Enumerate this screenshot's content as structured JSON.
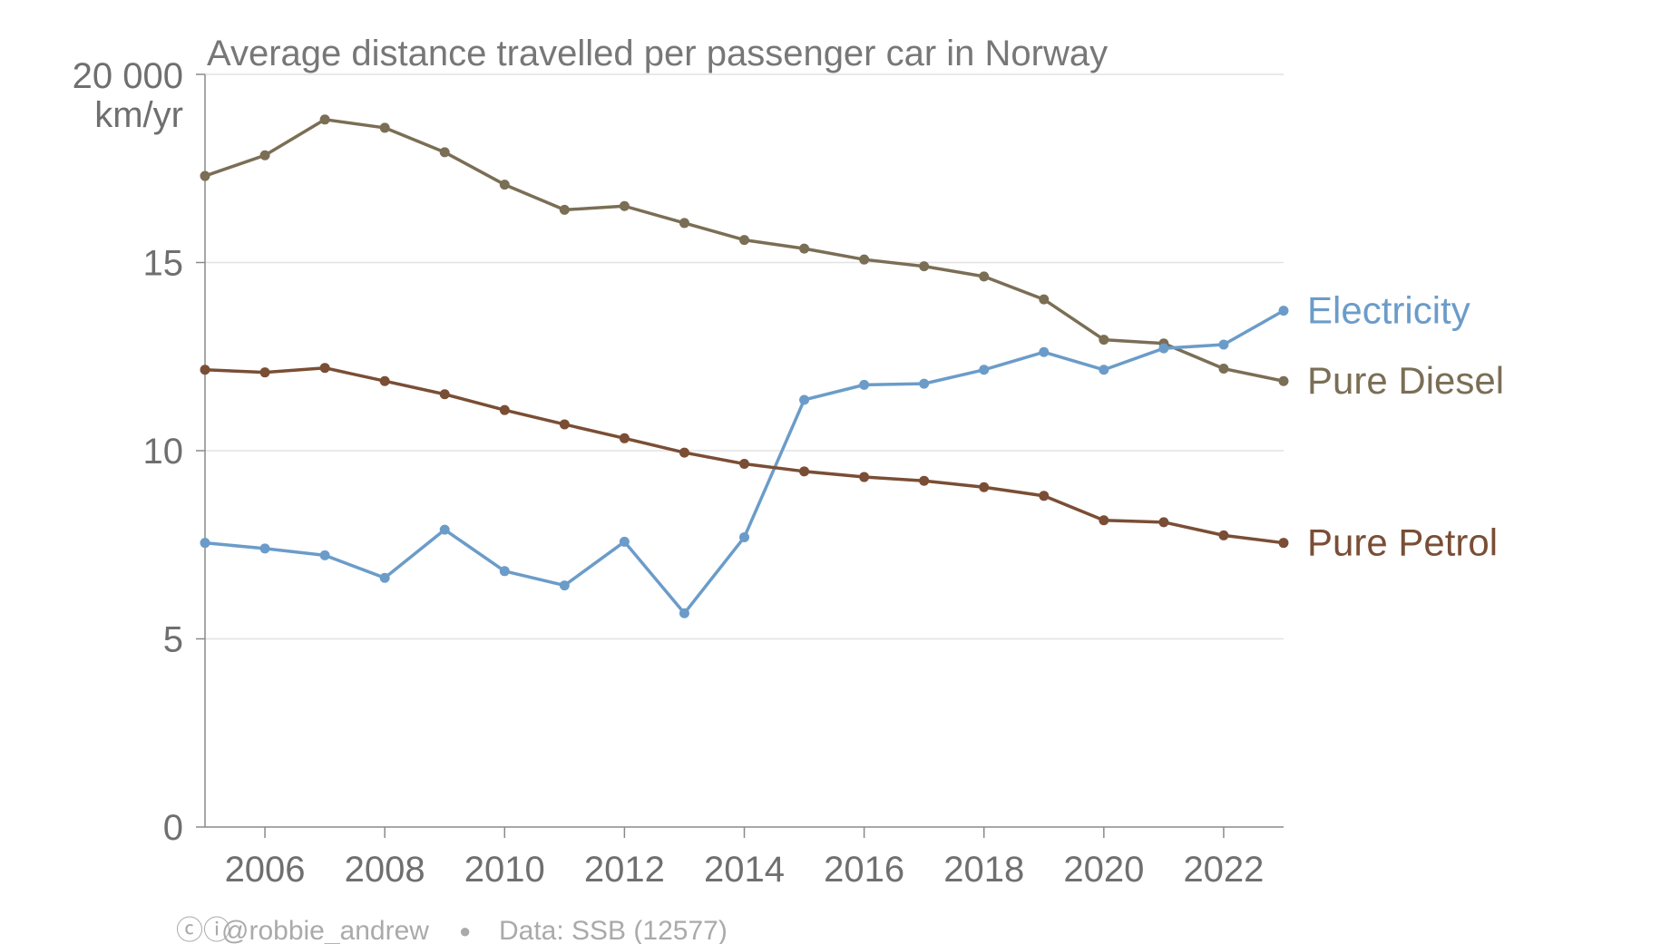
{
  "chart_data": {
    "type": "line",
    "title": "Average distance travelled per passenger car in Norway",
    "y_top_label": "20 000",
    "y_unit": "km/yr",
    "yticks": [
      {
        "value": 0,
        "label": "0"
      },
      {
        "value": 5,
        "label": "5"
      },
      {
        "value": 10,
        "label": "10"
      },
      {
        "value": 15,
        "label": "15"
      }
    ],
    "ylim": [
      0,
      20
    ],
    "xlim": [
      2005,
      2023
    ],
    "xticks": [
      2006,
      2008,
      2010,
      2012,
      2014,
      2016,
      2018,
      2020,
      2022
    ],
    "grid": true,
    "legend": "direct labels at line ends",
    "x": [
      2005,
      2006,
      2007,
      2008,
      2009,
      2010,
      2011,
      2012,
      2013,
      2014,
      2015,
      2016,
      2017,
      2018,
      2019,
      2020,
      2021,
      2022,
      2023
    ],
    "series": [
      {
        "name": "Pure Diesel",
        "color": "#7a6e55",
        "values": [
          17.3,
          17.85,
          18.8,
          18.58,
          17.93,
          17.07,
          16.4,
          16.5,
          16.05,
          15.6,
          15.37,
          15.08,
          14.9,
          14.63,
          14.02,
          12.95,
          12.85,
          12.18,
          11.85
        ]
      },
      {
        "name": "Electricity",
        "color": "#6b9cc9",
        "values": [
          7.55,
          7.4,
          7.22,
          6.62,
          7.9,
          6.8,
          6.42,
          7.58,
          5.68,
          7.7,
          11.35,
          11.75,
          11.78,
          12.15,
          12.62,
          12.15,
          12.72,
          12.82,
          13.72
        ]
      },
      {
        "name": "Pure Petrol",
        "color": "#7a4e35",
        "values": [
          12.15,
          12.08,
          12.2,
          11.85,
          11.5,
          11.08,
          10.7,
          10.33,
          9.95,
          9.65,
          9.45,
          9.3,
          9.2,
          9.03,
          8.8,
          8.15,
          8.1,
          7.75,
          7.55
        ]
      }
    ]
  },
  "credit": {
    "license_glyphs": "ⓒⓘ",
    "author": "@robbie_andrew",
    "separator": "●",
    "source": "Data: SSB (12577)"
  }
}
